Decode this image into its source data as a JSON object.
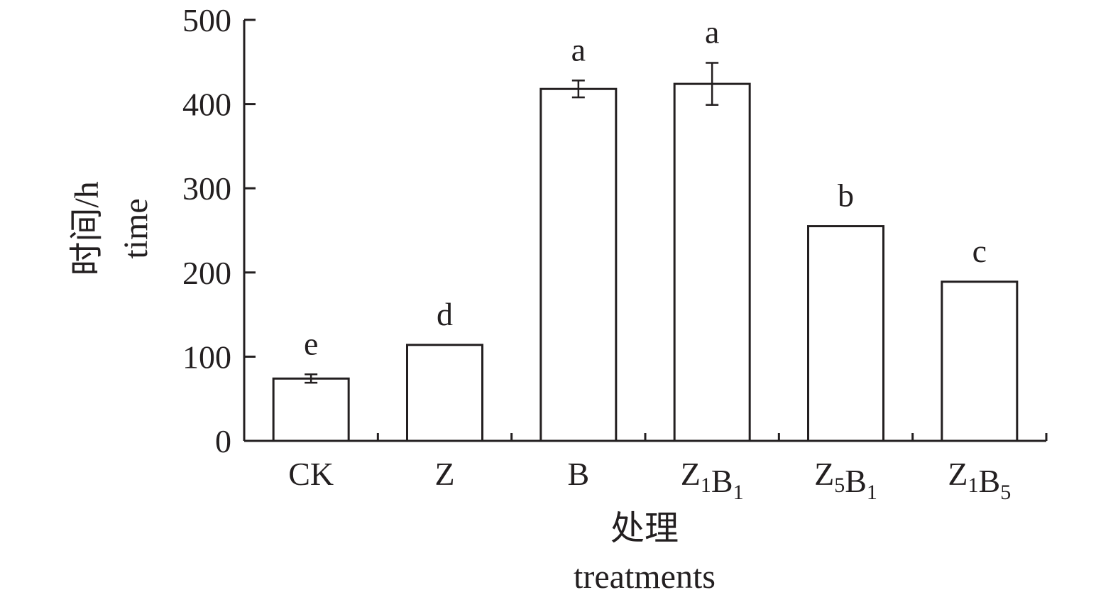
{
  "chart_data": {
    "type": "bar",
    "categories": [
      {
        "main": "CK",
        "sub": []
      },
      {
        "main": "Z",
        "sub": []
      },
      {
        "main": "B",
        "sub": []
      },
      {
        "main": "Z₁B₁",
        "sub": [
          [
            "Z",
            "1"
          ],
          [
            "B",
            "1"
          ]
        ]
      },
      {
        "main": "Z₅B₁",
        "sub": [
          [
            "Z",
            "5"
          ],
          [
            "B",
            "1"
          ]
        ]
      },
      {
        "main": "Z₁B₅",
        "sub": [
          [
            "Z",
            "1"
          ],
          [
            "B",
            "5"
          ]
        ]
      }
    ],
    "values": [
      74,
      114,
      418,
      424,
      255,
      189
    ],
    "errors": [
      5,
      0,
      10,
      25,
      0,
      0
    ],
    "significance": [
      "e",
      "d",
      "a",
      "a",
      "b",
      "c"
    ],
    "ylim": [
      0,
      500
    ],
    "yticks": [
      0,
      100,
      200,
      300,
      400,
      500
    ],
    "ylabel_cn": "时间/h",
    "ylabel_en": "time",
    "xlabel_cn": "处理",
    "xlabel_en": "treatments",
    "grid": false,
    "bar_fill": "#ffffff",
    "stroke_color": "#231f20"
  }
}
